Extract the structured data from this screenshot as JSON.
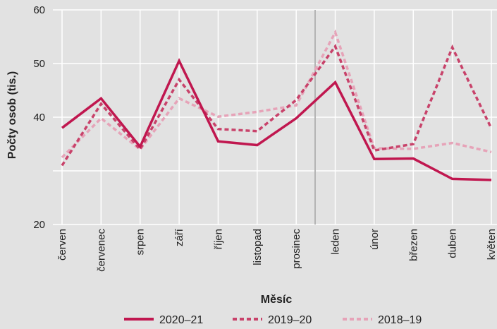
{
  "chart_data": {
    "type": "line",
    "xlabel": "Měsíc",
    "ylabel": "Počty osob (tis.)",
    "ylim": [
      20,
      60
    ],
    "yticks": [
      20,
      40,
      50,
      60
    ],
    "ytick_labels": [
      "20",
      "40",
      "50",
      "60"
    ],
    "grid": true,
    "legend_position": "bottom",
    "categories": [
      "červen",
      "červenec",
      "srpen",
      "září",
      "říjen",
      "listopad",
      "prosinec",
      "leden",
      "únor",
      "březen",
      "duben",
      "květen"
    ],
    "series": [
      {
        "name": "2020–21",
        "color": "#c0174f",
        "dash": "solid",
        "values": [
          38.0,
          43.5,
          34.5,
          50.5,
          35.5,
          34.8,
          39.8,
          46.5,
          32.2,
          32.3,
          28.5,
          28.3
        ]
      },
      {
        "name": "2019–20",
        "color": "#c8426a",
        "dash": "dashed",
        "values": [
          31.0,
          42.5,
          34.0,
          47.0,
          37.8,
          37.4,
          43.2,
          53.2,
          33.8,
          35.0,
          53.0,
          37.9
        ]
      },
      {
        "name": "2018–19",
        "color": "#e6a3b8",
        "dash": "dashed",
        "values": [
          32.5,
          39.8,
          34.0,
          43.5,
          40.1,
          41.0,
          42.2,
          55.8,
          34.2,
          34.1,
          35.2,
          33.5
        ]
      }
    ]
  }
}
